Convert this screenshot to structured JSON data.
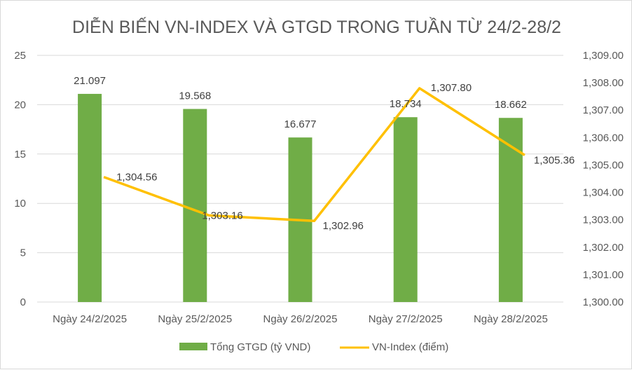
{
  "chart_data": {
    "type": "bar+line",
    "title": "DIỄN BIẾN VN-INDEX VÀ GTGD TRONG TUẦN TỪ 24/2-28/2",
    "categories": [
      "Ngày 24/2/2025",
      "Ngày 25/2/2025",
      "Ngày 26/2/2025",
      "Ngày 27/2/2025",
      "Ngày 28/2/2025"
    ],
    "series": [
      {
        "name": "Tổng GTGD (tỷ VND)",
        "type": "bar",
        "axis": "left",
        "color": "#70ad47",
        "values": [
          21.097,
          19.568,
          16.677,
          18.734,
          18.662
        ],
        "labels": [
          "21.097",
          "19.568",
          "16.677",
          "18.734",
          "18.662"
        ]
      },
      {
        "name": "VN-Index (điểm)",
        "type": "line",
        "axis": "right",
        "color": "#ffc000",
        "values": [
          1304.56,
          1303.16,
          1302.96,
          1307.8,
          1305.36
        ],
        "labels": [
          "1,304.56",
          "1,303.16",
          "1,302.96",
          "1,307.80",
          "1,305.36"
        ]
      }
    ],
    "left_axis": {
      "ylim": [
        0,
        25
      ],
      "ticks": [
        "0",
        "5",
        "10",
        "15",
        "20",
        "25"
      ]
    },
    "right_axis": {
      "ylim": [
        1300,
        1309
      ],
      "ticks": [
        "1,300.00",
        "1,301.00",
        "1,302.00",
        "1,303.00",
        "1,304.00",
        "1,305.00",
        "1,306.00",
        "1,307.00",
        "1,308.00",
        "1,309.00"
      ]
    },
    "grid": true,
    "legend": "bottom"
  }
}
